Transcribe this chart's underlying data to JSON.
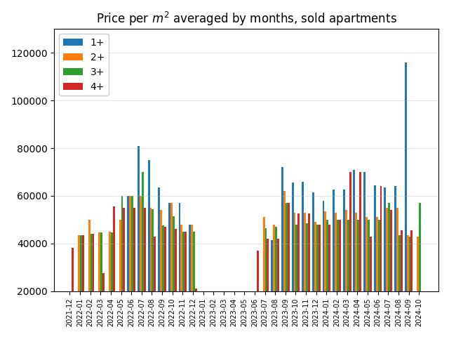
{
  "months": [
    "2021-12",
    "2022-01",
    "2022-02",
    "2022-03",
    "2022-04",
    "2022-05",
    "2022-06",
    "2022-07",
    "2022-08",
    "2022-09",
    "2022-10",
    "2022-11",
    "2022-12",
    "2023-01",
    "2023-02",
    "2023-03",
    "2023-04",
    "2023-05",
    "2023-06",
    "2023-07",
    "2023-08",
    "2023-09",
    "2023-10",
    "2023-11",
    "2023-12",
    "2024-01",
    "2024-02",
    "2024-03",
    "2024-04",
    "2024-05",
    "2024-06",
    "2024-07",
    "2024-08",
    "2024-09",
    "2024-10"
  ],
  "series": {
    "1+": [
      0,
      0,
      0,
      0,
      0,
      0,
      60000,
      81000,
      75000,
      63500,
      57000,
      57000,
      48000,
      0,
      0,
      0,
      0,
      0,
      0,
      0,
      41500,
      72000,
      65500,
      66000,
      61500,
      58000,
      62500,
      62500,
      71000,
      70000,
      64500,
      63500,
      64000,
      116000,
      0
    ],
    "2+": [
      0,
      43500,
      50000,
      44500,
      45000,
      50000,
      60000,
      60000,
      55000,
      54000,
      57000,
      48000,
      48000,
      0,
      0,
      0,
      0,
      0,
      0,
      51000,
      48000,
      62000,
      53000,
      53000,
      49000,
      53500,
      53000,
      54000,
      53000,
      51000,
      51000,
      55000,
      55000,
      43500,
      43000
    ],
    "3+": [
      0,
      43500,
      44000,
      44500,
      44500,
      60000,
      60000,
      70000,
      54500,
      47500,
      51500,
      45000,
      45000,
      0,
      0,
      0,
      0,
      0,
      0,
      46500,
      47000,
      57000,
      48000,
      48500,
      48000,
      50000,
      50000,
      50000,
      50000,
      50000,
      50000,
      57000,
      43500,
      43000,
      57000
    ],
    "4+": [
      38000,
      43500,
      44000,
      27500,
      55500,
      55000,
      55000,
      55000,
      43000,
      47000,
      46000,
      45000,
      21000,
      0,
      0,
      0,
      0,
      0,
      37000,
      42000,
      42000,
      57000,
      52500,
      52500,
      48000,
      48000,
      50000,
      70000,
      70000,
      43000,
      64000,
      54000,
      45500,
      45500,
      0
    ]
  },
  "colors": {
    "1+": "#1f77b4",
    "2+": "#ff7f0e",
    "3+": "#2ca02c",
    "4+": "#d62728"
  },
  "title": "Price per $m^2$ averaged by months, sold apartments",
  "ylim": [
    20000,
    130000
  ],
  "yticks": [
    20000,
    40000,
    60000,
    80000,
    100000,
    120000
  ],
  "figsize": [
    6.4,
    4.8
  ],
  "dpi": 100
}
